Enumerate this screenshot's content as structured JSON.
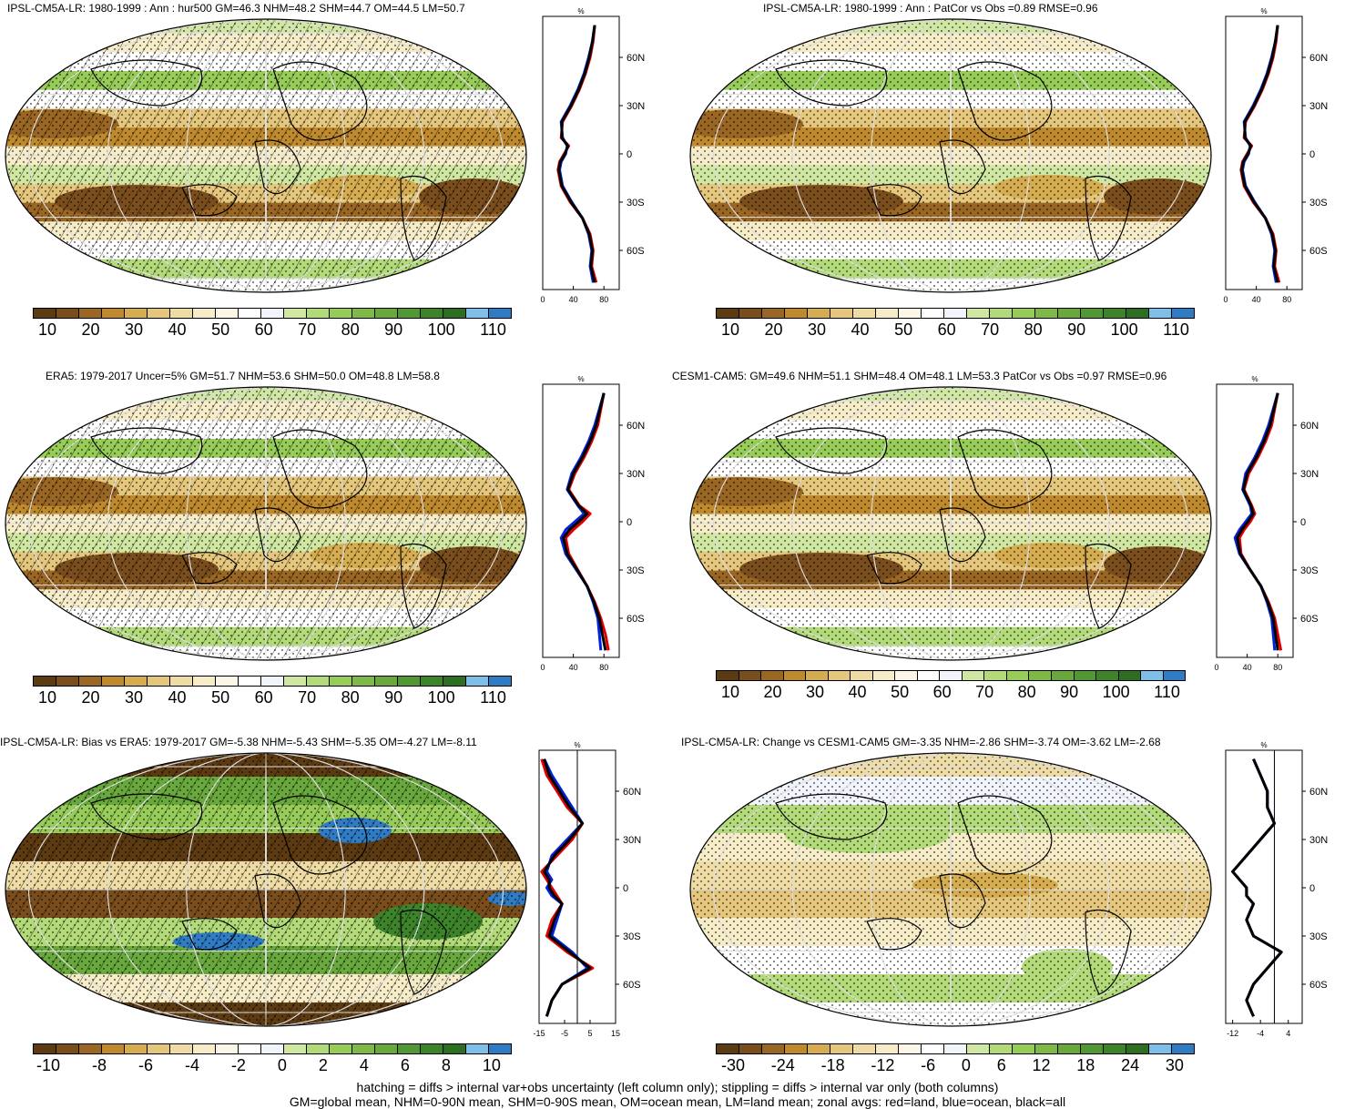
{
  "panels": [
    {
      "id": "p1",
      "title": "IPSL-CM5A-LR: 1980-1999 : Ann : hur500 GM=46.3 NHM=48.2 SHM=44.7 OM=44.5 LM=50.7",
      "cbar": "abs",
      "hatch": true,
      "zonal": "abs"
    },
    {
      "id": "p2",
      "title": "IPSL-CM5A-LR: 1980-1999 : Ann : PatCor vs Obs =0.89 RMSE=0.96",
      "cbar": "abs",
      "hatch": false,
      "zonal": "abs"
    },
    {
      "id": "p3",
      "title": "ERA5: 1979-2017 Uncer=5% GM=51.7 NHM=53.6 SHM=50.0 OM=48.8 LM=58.8",
      "cbar": "abs",
      "hatch": true,
      "zonal": "abs"
    },
    {
      "id": "p4",
      "title": "CESM1-CAM5: GM=49.6 NHM=51.1 SHM=48.4 OM=48.1 LM=53.3 PatCor vs Obs =0.97 RMSE=0.96",
      "cbar": "abs",
      "hatch": false,
      "zonal": "abs"
    },
    {
      "id": "p5",
      "title": "IPSL-CM5A-LR: Bias vs ERA5: 1979-2017 GM=-5.38 NHM=-5.43 SHM=-5.35 OM=-4.27 LM=-8.11",
      "cbar": "bias",
      "hatch": true,
      "zonal": "bias"
    },
    {
      "id": "p6",
      "title": "IPSL-CM5A-LR: Change vs CESM1-CAM5 GM=-3.35 NHM=-2.86 SHM=-3.74 OM=-3.62 LM=-2.68",
      "cbar": "change",
      "hatch": false,
      "zonal": "change"
    }
  ],
  "colorbars": {
    "abs": {
      "labels": [
        "10",
        "20",
        "30",
        "40",
        "50",
        "60",
        "70",
        "80",
        "90",
        "100",
        "110"
      ],
      "colors": [
        "#5c3a12",
        "#7a4d1c",
        "#9a6624",
        "#bf8a2e",
        "#d6ac50",
        "#e4c77c",
        "#efdca4",
        "#f6ecc8",
        "#fbf6e6",
        "#ffffff",
        "#f2f4fb",
        "#cfe7a0",
        "#b2da78",
        "#97cc58",
        "#7eb948",
        "#68a83c",
        "#519733",
        "#3d832a",
        "#2d6e22",
        "#7dbfe8",
        "#2f7bc4"
      ]
    },
    "bias": {
      "labels": [
        "-10",
        "-8",
        "-6",
        "-4",
        "-2",
        "0",
        "2",
        "4",
        "6",
        "8",
        "10"
      ],
      "colors": [
        "#5c3a12",
        "#7a4d1c",
        "#9a6624",
        "#bf8a2e",
        "#d6ac50",
        "#e4c77c",
        "#efdca4",
        "#f6ecc8",
        "#fbf6e6",
        "#ffffff",
        "#f2f4fb",
        "#cfe7a0",
        "#b2da78",
        "#97cc58",
        "#7eb948",
        "#68a83c",
        "#519733",
        "#3d832a",
        "#2d6e22",
        "#7dbfe8",
        "#2f7bc4"
      ]
    },
    "change": {
      "labels": [
        "-30",
        "-24",
        "-18",
        "-12",
        "-6",
        "0",
        "6",
        "12",
        "18",
        "24",
        "30"
      ],
      "colors": [
        "#5c3a12",
        "#7a4d1c",
        "#9a6624",
        "#bf8a2e",
        "#d6ac50",
        "#e4c77c",
        "#efdca4",
        "#f6ecc8",
        "#fbf6e6",
        "#ffffff",
        "#f2f4fb",
        "#cfe7a0",
        "#b2da78",
        "#97cc58",
        "#7eb948",
        "#68a83c",
        "#519733",
        "#3d832a",
        "#2d6e22",
        "#7dbfe8",
        "#2f7bc4"
      ]
    }
  },
  "zonal_axes": {
    "abs": {
      "xticks": [
        "0",
        "40",
        "80"
      ],
      "xlim": [
        0,
        100
      ]
    },
    "bias": {
      "xticks": [
        "-15",
        "-5",
        "5",
        "15"
      ],
      "xlim": [
        -15,
        15
      ]
    },
    "change": {
      "xticks": [
        "-12",
        "-4",
        "4"
      ],
      "xlim": [
        -14,
        8
      ]
    },
    "unit": "%",
    "lat_labels": [
      "60N",
      "30N",
      "0",
      "30S",
      "60S"
    ]
  },
  "chart_data": {
    "type": "line",
    "variable": "hur500",
    "lat": [
      80,
      70,
      60,
      50,
      40,
      30,
      20,
      10,
      5,
      0,
      -5,
      -10,
      -20,
      -30,
      -40,
      -50,
      -60,
      -70,
      -80
    ],
    "zonal_profiles": {
      "p1": {
        "land": [
          68,
          66,
          62,
          56,
          48,
          38,
          26,
          24,
          34,
          28,
          22,
          20,
          24,
          36,
          52,
          62,
          66,
          64,
          70
        ],
        "ocean": [
          68,
          65,
          60,
          54,
          46,
          36,
          24,
          26,
          32,
          30,
          24,
          22,
          26,
          38,
          52,
          60,
          64,
          62,
          66
        ],
        "all": [
          68,
          65,
          61,
          55,
          47,
          37,
          25,
          25,
          33,
          29,
          23,
          21,
          25,
          37,
          52,
          61,
          65,
          63,
          68
        ]
      },
      "p2": {
        "land": [
          68,
          66,
          62,
          56,
          48,
          38,
          26,
          24,
          34,
          28,
          22,
          20,
          24,
          36,
          52,
          62,
          66,
          64,
          70
        ],
        "ocean": [
          68,
          65,
          60,
          54,
          46,
          36,
          24,
          26,
          32,
          30,
          24,
          22,
          26,
          38,
          52,
          60,
          64,
          62,
          66
        ],
        "all": [
          68,
          65,
          61,
          55,
          47,
          37,
          25,
          25,
          33,
          29,
          23,
          21,
          25,
          37,
          52,
          61,
          65,
          63,
          68
        ]
      },
      "p3": {
        "land": [
          80,
          76,
          72,
          64,
          54,
          42,
          34,
          48,
          62,
          52,
          40,
          30,
          34,
          46,
          58,
          68,
          76,
          82,
          86
        ],
        "ocean": [
          80,
          74,
          68,
          60,
          50,
          38,
          32,
          46,
          54,
          42,
          30,
          24,
          30,
          44,
          58,
          66,
          72,
          74,
          76
        ],
        "all": [
          80,
          75,
          70,
          62,
          52,
          40,
          33,
          47,
          58,
          47,
          35,
          27,
          32,
          45,
          58,
          67,
          74,
          78,
          82
        ]
      },
      "p4": {
        "land": [
          80,
          76,
          72,
          64,
          54,
          42,
          36,
          46,
          50,
          44,
          36,
          30,
          32,
          44,
          58,
          68,
          76,
          80,
          84
        ],
        "ocean": [
          80,
          74,
          68,
          60,
          50,
          38,
          34,
          44,
          46,
          38,
          30,
          24,
          30,
          44,
          58,
          66,
          72,
          74,
          76
        ],
        "all": [
          80,
          75,
          70,
          62,
          52,
          40,
          35,
          45,
          48,
          41,
          33,
          27,
          31,
          44,
          58,
          67,
          74,
          77,
          80
        ]
      },
      "p5": {
        "land": [
          -14,
          -12,
          -8,
          -4,
          2,
          -2,
          -8,
          -14,
          -12,
          -10,
          -8,
          -6,
          -10,
          -12,
          -4,
          6,
          -6,
          -10,
          -12
        ],
        "ocean": [
          -13,
          -10,
          -6,
          -2,
          2,
          -4,
          -10,
          -12,
          -10,
          -12,
          -10,
          -6,
          -8,
          -10,
          -2,
          4,
          -6,
          -10,
          -12
        ],
        "all": [
          -13,
          -11,
          -7,
          -3,
          2,
          -3,
          -9,
          -13,
          -11,
          -11,
          -9,
          -6,
          -9,
          -11,
          -3,
          5,
          -6,
          -10,
          -12
        ]
      },
      "p6": {
        "land": [
          -6,
          -4,
          -2,
          -2,
          0,
          -4,
          -8,
          -12,
          -10,
          -8,
          -8,
          -6,
          -8,
          -6,
          2,
          -2,
          -6,
          -8,
          -6
        ],
        "ocean": [
          -6,
          -4,
          -2,
          -2,
          0,
          -4,
          -8,
          -12,
          -10,
          -8,
          -8,
          -6,
          -8,
          -6,
          2,
          -2,
          -6,
          -8,
          -6
        ],
        "all": [
          -6,
          -4,
          -2,
          -2,
          0,
          -4,
          -8,
          -12,
          -10,
          -8,
          -8,
          -6,
          -8,
          -6,
          2,
          -2,
          -6,
          -8,
          -6
        ]
      }
    }
  },
  "footer": {
    "line1": "hatching = diffs > internal var+obs uncertainty (left column only); stippling = diffs > internal var only (both columns)",
    "line2": "GM=global mean, NHM=0-90N mean, SHM=0-90S mean, OM=ocean mean, LM=land mean; zonal avgs: red=land, blue=ocean, black=all"
  }
}
